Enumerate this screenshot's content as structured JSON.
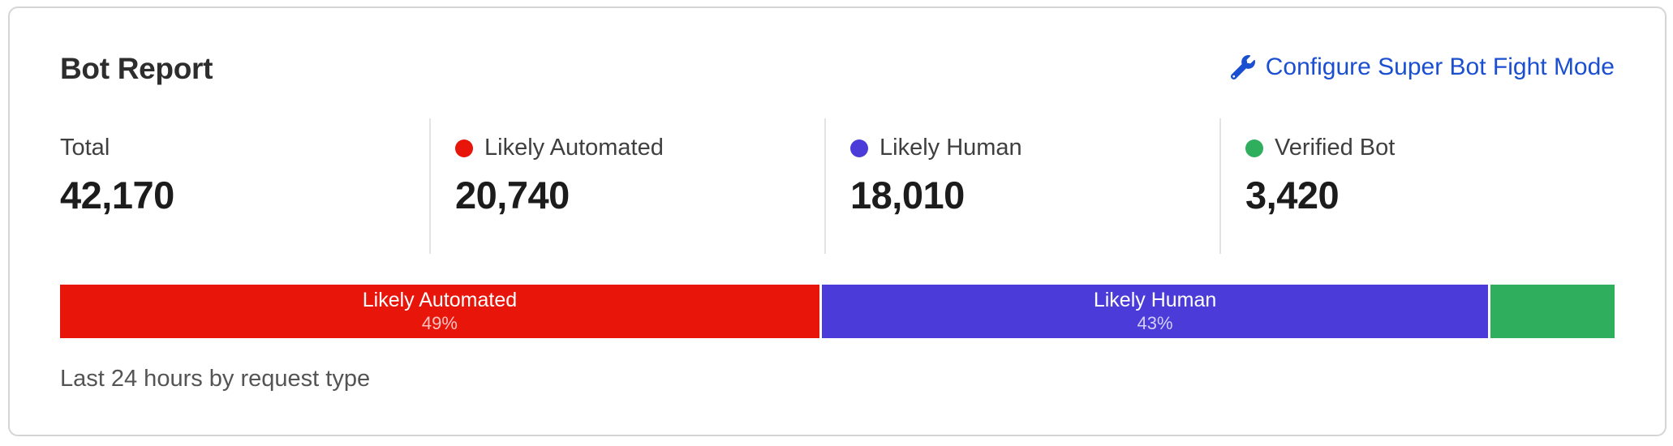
{
  "card": {
    "title": "Bot Report",
    "action_link": {
      "label": "Configure Super Bot Fight Mode",
      "icon": "wrench-icon",
      "color": "#1b4fd1"
    },
    "footer": "Last 24 hours by request type"
  },
  "stats": [
    {
      "label": "Total",
      "value": "42,170",
      "dot_color": ""
    },
    {
      "label": "Likely Automated",
      "value": "20,740",
      "dot_color": "#e8150a"
    },
    {
      "label": "Likely Human",
      "value": "18,010",
      "dot_color": "#4b3cd9"
    },
    {
      "label": "Verified Bot",
      "value": "3,420",
      "dot_color": "#2fae5e"
    }
  ],
  "chart_data": {
    "type": "bar",
    "variant": "stacked-horizontal",
    "title": "Bot Report",
    "caption": "Last 24 hours by request type",
    "total": 42170,
    "legend_position": "stats-row-above-bar",
    "segments": [
      {
        "label": "Likely Automated",
        "value": 20740,
        "pct": 49,
        "pct_label": "49%",
        "color": "#e8150a",
        "bar_label_visible": true
      },
      {
        "label": "Likely Human",
        "value": 18010,
        "pct": 43,
        "pct_label": "43%",
        "color": "#4b3cd9",
        "bar_label_visible": true
      },
      {
        "label": "Verified Bot",
        "value": 3420,
        "pct": 8,
        "pct_label": "8%",
        "color": "#2fae5e",
        "bar_label_visible": false
      }
    ]
  }
}
